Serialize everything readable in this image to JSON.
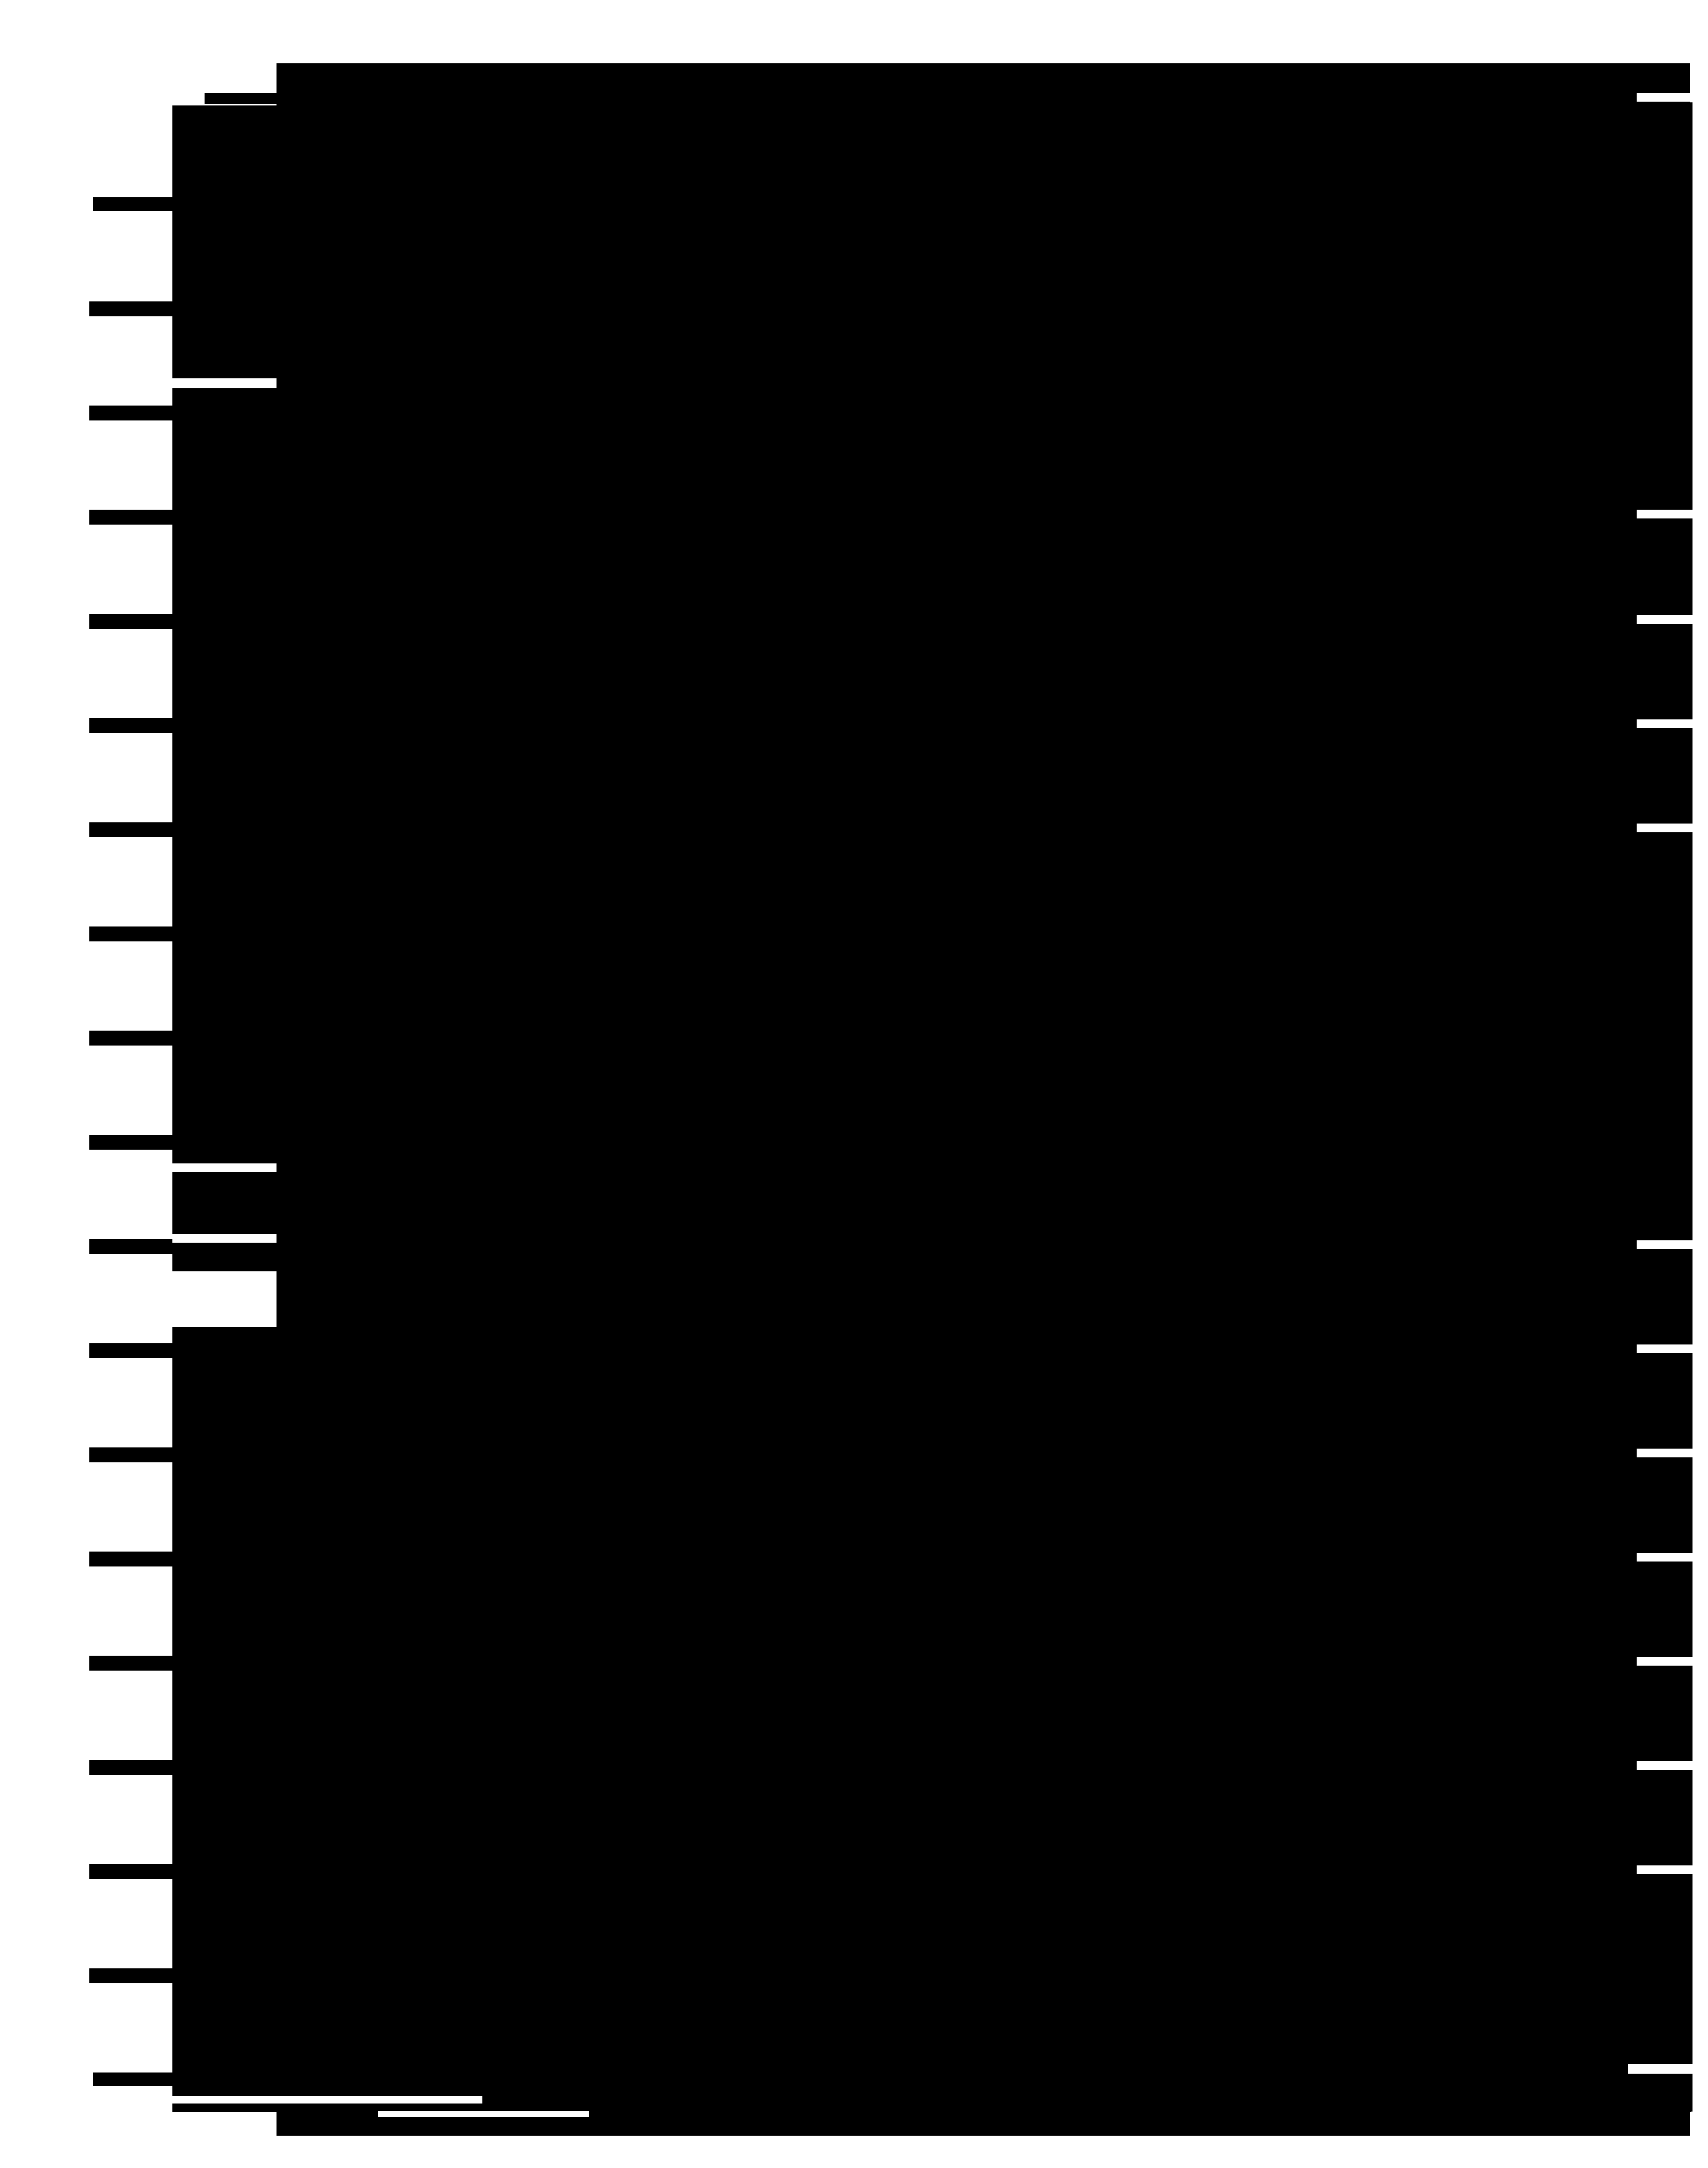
{
  "colors": {
    "shape": "#000000",
    "background": "#ffffff"
  }
}
